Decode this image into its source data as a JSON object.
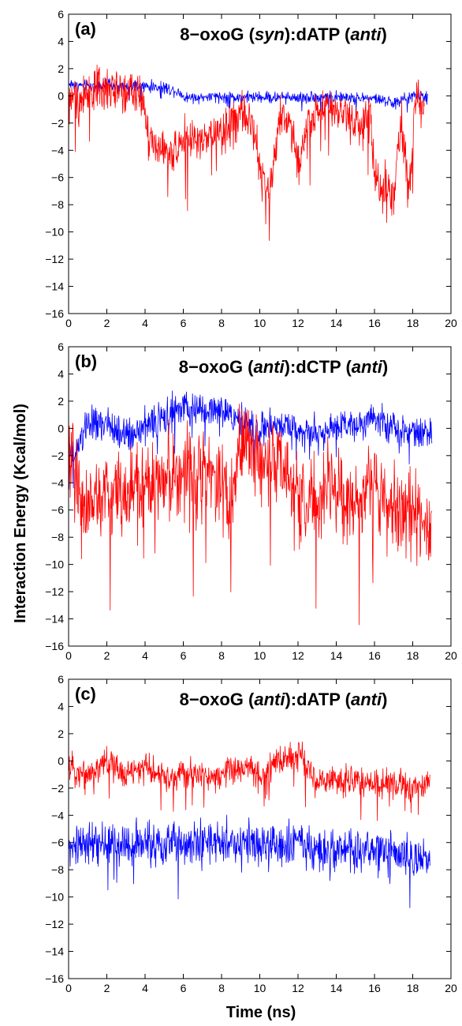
{
  "figure": {
    "ylabel": "Interaction Energy (Kcal/mol)",
    "xlabel": "Time (ns)"
  },
  "colors": {
    "red_series": "#ff0000",
    "blue_series": "#0000ff",
    "axes": "#000000"
  },
  "chart_data": [
    {
      "type": "line",
      "panel_label": "(a)",
      "title_parts": [
        {
          "text": "8-oxoG (",
          "italic": false
        },
        {
          "text": "syn",
          "italic": true
        },
        {
          "text": "):dATP (",
          "italic": false
        },
        {
          "text": "anti",
          "italic": true
        },
        {
          "text": ")",
          "italic": false
        }
      ],
      "xlim": [
        0,
        20
      ],
      "ylim": [
        -16,
        6
      ],
      "xticks": [
        0,
        2,
        4,
        6,
        8,
        10,
        12,
        14,
        16,
        18,
        20
      ],
      "yticks": [
        6,
        4,
        2,
        0,
        -2,
        -4,
        -6,
        -8,
        -10,
        -12,
        -14,
        -16
      ],
      "series": [
        {
          "color": "#0000ff",
          "noise": 0.35,
          "points": [
            [
              0,
              0.9
            ],
            [
              1,
              0.7
            ],
            [
              2,
              0.8
            ],
            [
              3,
              0.6
            ],
            [
              4,
              0.7
            ],
            [
              5,
              0.6
            ],
            [
              5.8,
              0.3
            ],
            [
              6,
              -0.1
            ],
            [
              8,
              -0.1
            ],
            [
              10,
              -0.1
            ],
            [
              12,
              -0.1
            ],
            [
              14,
              -0.1
            ],
            [
              16,
              -0.2
            ],
            [
              17,
              -0.5
            ],
            [
              17.5,
              -0.3
            ],
            [
              18,
              0
            ],
            [
              18.8,
              0
            ]
          ]
        },
        {
          "color": "#ff0000",
          "noise": 1.3,
          "points": [
            [
              0,
              0
            ],
            [
              0.5,
              -0.5
            ],
            [
              1,
              0.3
            ],
            [
              2,
              0.5
            ],
            [
              3,
              0.5
            ],
            [
              3.9,
              0
            ],
            [
              4.2,
              -3
            ],
            [
              4.8,
              -4
            ],
            [
              5.4,
              -4.5
            ],
            [
              6,
              -3
            ],
            [
              7,
              -3.5
            ],
            [
              8,
              -2.5
            ],
            [
              9,
              -1.5
            ],
            [
              9.6,
              -2
            ],
            [
              10.2,
              -6.5
            ],
            [
              10.5,
              -7.5
            ],
            [
              11,
              -1.5
            ],
            [
              11.6,
              -2
            ],
            [
              12.1,
              -5
            ],
            [
              12.5,
              -2
            ],
            [
              13,
              -1
            ],
            [
              14,
              -1.2
            ],
            [
              15,
              -1.8
            ],
            [
              15.8,
              -1.5
            ],
            [
              16,
              -6
            ],
            [
              16.5,
              -6.5
            ],
            [
              17,
              -7.5
            ],
            [
              17.4,
              -2
            ],
            [
              17.8,
              -7
            ],
            [
              18.2,
              0
            ],
            [
              18.6,
              -0.8
            ]
          ]
        }
      ]
    },
    {
      "type": "line",
      "panel_label": "(b)",
      "title_parts": [
        {
          "text": "8-oxoG (",
          "italic": false
        },
        {
          "text": "anti",
          "italic": true
        },
        {
          "text": "):dCTP (",
          "italic": false
        },
        {
          "text": "anti",
          "italic": true
        },
        {
          "text": ")",
          "italic": false
        }
      ],
      "xlim": [
        0,
        20
      ],
      "ylim": [
        -16,
        6
      ],
      "xticks": [
        0,
        2,
        4,
        6,
        8,
        10,
        12,
        14,
        16,
        18,
        20
      ],
      "yticks": [
        6,
        4,
        2,
        0,
        -2,
        -4,
        -6,
        -8,
        -10,
        -12,
        -14,
        -16
      ],
      "series": [
        {
          "color": "#0000ff",
          "noise": 1.0,
          "points": [
            [
              0,
              -2.5
            ],
            [
              0.5,
              -1.5
            ],
            [
              1,
              0.5
            ],
            [
              2,
              0.3
            ],
            [
              3,
              -0.5
            ],
            [
              4,
              0.2
            ],
            [
              5,
              0.8
            ],
            [
              6,
              1.5
            ],
            [
              7,
              1.2
            ],
            [
              8,
              1.5
            ],
            [
              9,
              0.5
            ],
            [
              10,
              -0.2
            ],
            [
              11,
              0.3
            ],
            [
              12,
              0
            ],
            [
              13,
              -0.3
            ],
            [
              14,
              0.2
            ],
            [
              15,
              0.3
            ],
            [
              16,
              1
            ],
            [
              17,
              -0.2
            ],
            [
              18,
              0
            ],
            [
              19,
              -0.5
            ]
          ]
        },
        {
          "color": "#ff0000",
          "noise": 2.6,
          "points": [
            [
              0,
              -1
            ],
            [
              0.3,
              -3
            ],
            [
              0.7,
              -5.5
            ],
            [
              2,
              -5
            ],
            [
              3,
              -4.5
            ],
            [
              4,
              -4
            ],
            [
              5,
              -3.5
            ],
            [
              6,
              -3.2
            ],
            [
              7,
              -3
            ],
            [
              8,
              -3.5
            ],
            [
              8.5,
              -6
            ],
            [
              9,
              -1
            ],
            [
              10,
              -2
            ],
            [
              11,
              -3
            ],
            [
              12,
              -5
            ],
            [
              13,
              -5.5
            ],
            [
              14,
              -4
            ],
            [
              15,
              -6
            ],
            [
              16,
              -3
            ],
            [
              17,
              -6
            ],
            [
              18,
              -6.5
            ],
            [
              19,
              -7
            ]
          ]
        }
      ]
    },
    {
      "type": "line",
      "panel_label": "(c)",
      "title_parts": [
        {
          "text": "8-oxoG (",
          "italic": false
        },
        {
          "text": "anti",
          "italic": true
        },
        {
          "text": "):dATP (",
          "italic": false
        },
        {
          "text": "anti",
          "italic": true
        },
        {
          "text": ")",
          "italic": false
        }
      ],
      "xlim": [
        0,
        20
      ],
      "ylim": [
        -16,
        6
      ],
      "xticks": [
        0,
        2,
        4,
        6,
        8,
        10,
        12,
        14,
        16,
        18,
        20
      ],
      "yticks": [
        6,
        4,
        2,
        0,
        -2,
        -4,
        -6,
        -8,
        -10,
        -12,
        -14,
        -16
      ],
      "series": [
        {
          "color": "#ff0000",
          "noise": 0.9,
          "points": [
            [
              0,
              -0.5
            ],
            [
              1,
              -1
            ],
            [
              2,
              0
            ],
            [
              3,
              -1
            ],
            [
              4,
              -0.5
            ],
            [
              5,
              -1.2
            ],
            [
              6,
              -1
            ],
            [
              7,
              -1.1
            ],
            [
              8,
              -1
            ],
            [
              9,
              -0.5
            ],
            [
              10,
              -1
            ],
            [
              11,
              0
            ],
            [
              12,
              0.5
            ],
            [
              13,
              -1.5
            ],
            [
              14,
              -1.5
            ],
            [
              15,
              -1.3
            ],
            [
              16,
              -1.8
            ],
            [
              17,
              -1.5
            ],
            [
              18,
              -2
            ],
            [
              18.9,
              -1.5
            ]
          ]
        },
        {
          "color": "#0000ff",
          "noise": 1.3,
          "points": [
            [
              0,
              -6.5
            ],
            [
              1,
              -6
            ],
            [
              2,
              -6
            ],
            [
              3,
              -6.2
            ],
            [
              4,
              -6
            ],
            [
              5,
              -6
            ],
            [
              6,
              -6.2
            ],
            [
              7,
              -6
            ],
            [
              8,
              -6
            ],
            [
              9,
              -6.2
            ],
            [
              10,
              -6
            ],
            [
              11,
              -6.3
            ],
            [
              12,
              -6
            ],
            [
              13,
              -6.5
            ],
            [
              14,
              -6.5
            ],
            [
              15,
              -6.7
            ],
            [
              16,
              -6.5
            ],
            [
              17,
              -6.8
            ],
            [
              18,
              -6.8
            ],
            [
              18.9,
              -7
            ]
          ]
        }
      ]
    }
  ]
}
